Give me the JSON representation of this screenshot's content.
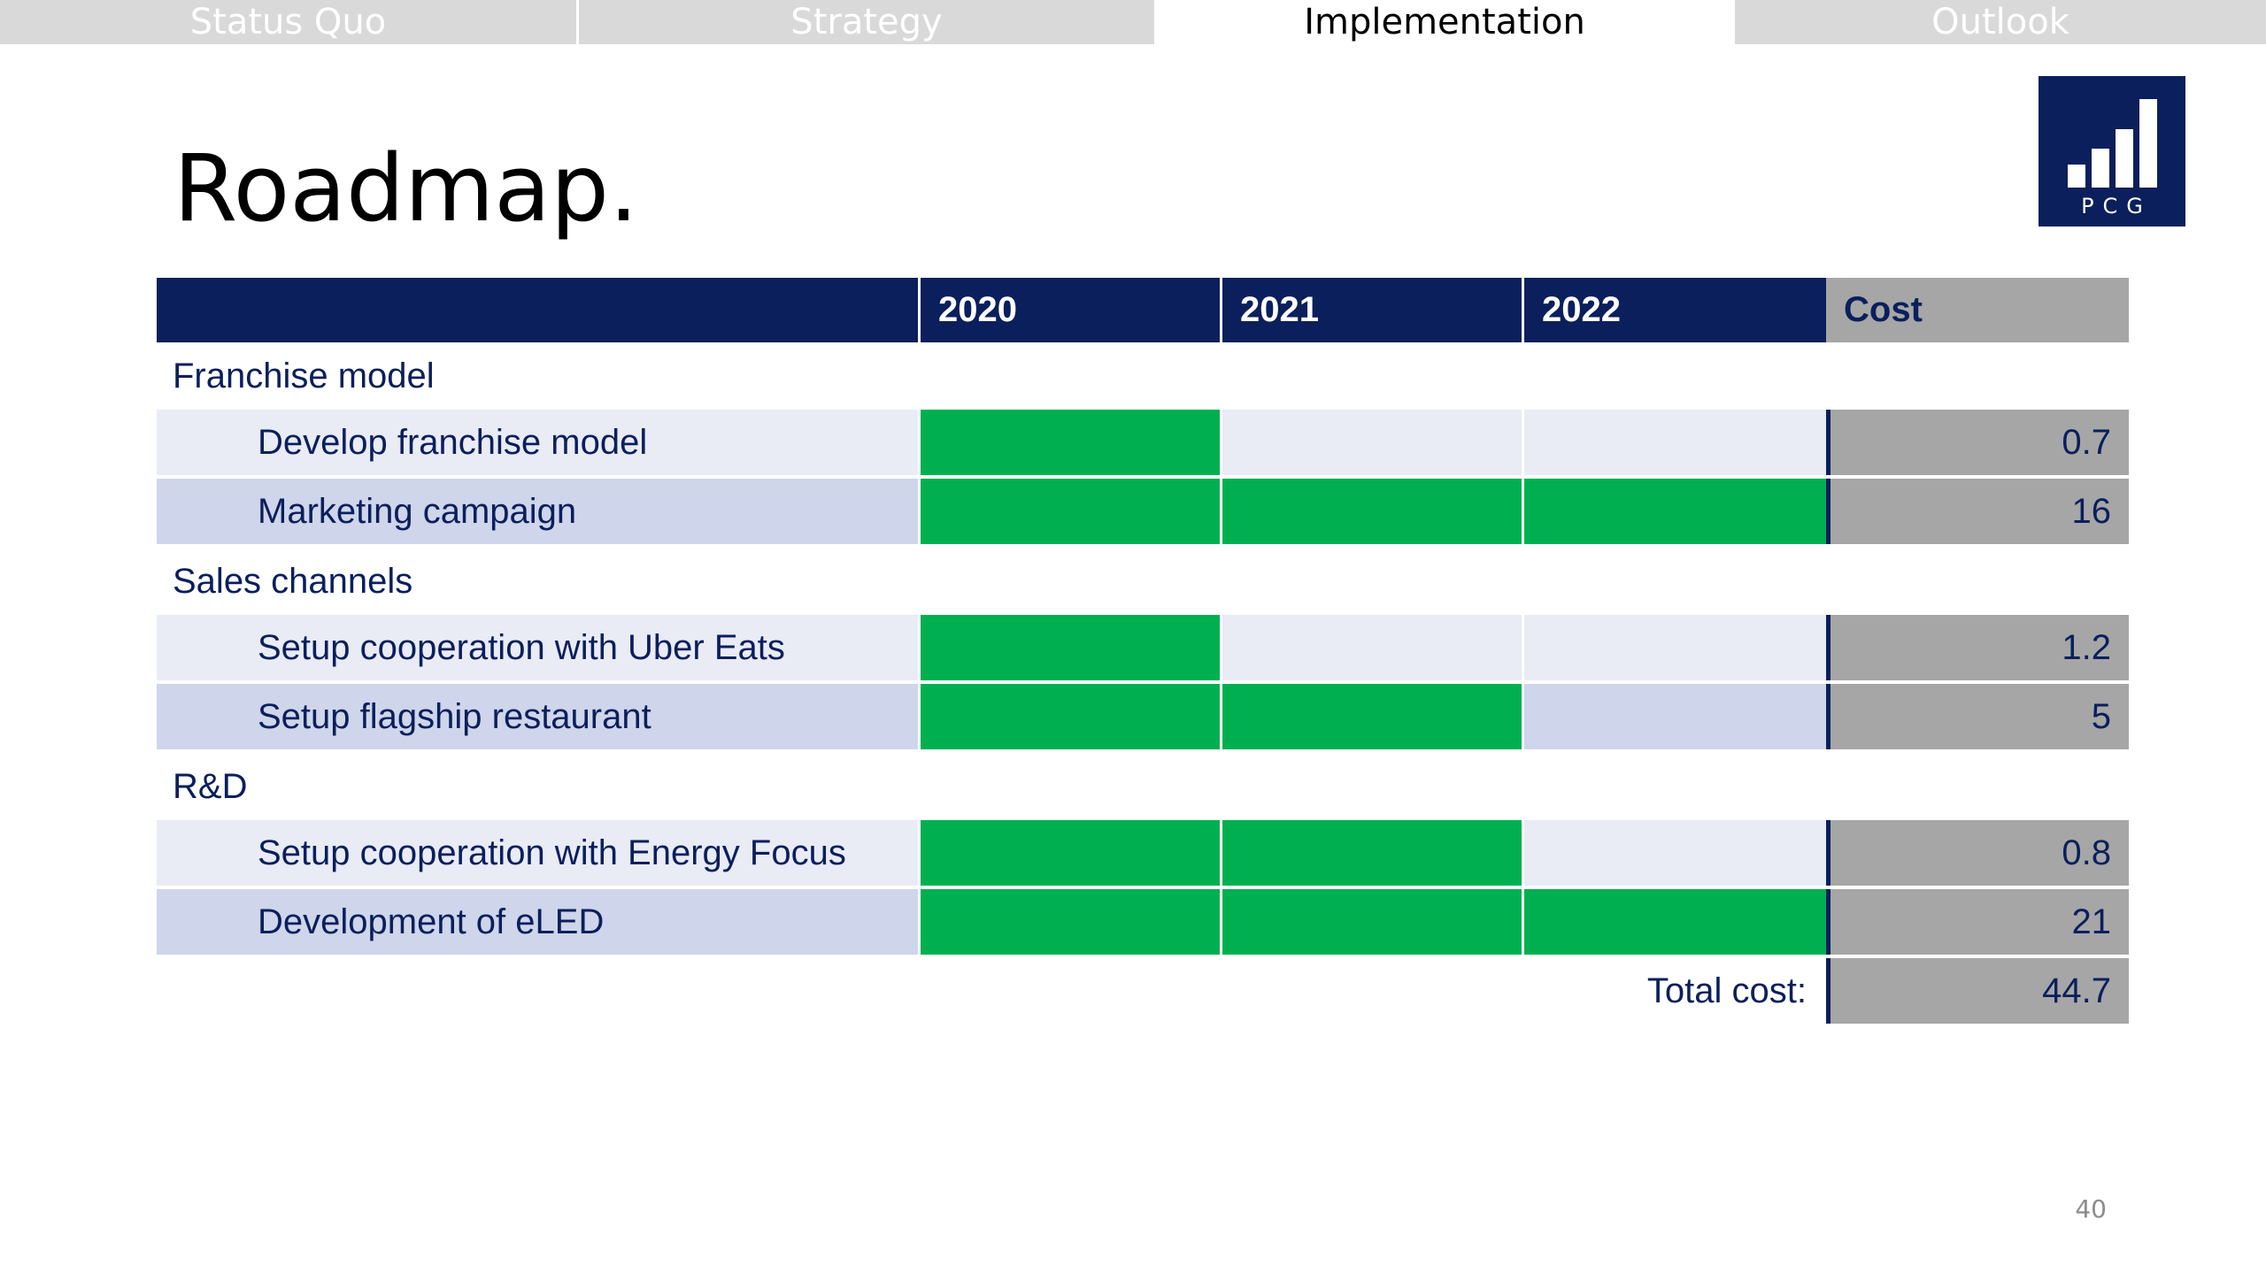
{
  "tabs": [
    {
      "label": "Status Quo",
      "active": false
    },
    {
      "label": "Strategy",
      "active": false
    },
    {
      "label": "Implementation",
      "active": true
    },
    {
      "label": "Outlook",
      "active": false
    }
  ],
  "title": "Roadmap.",
  "logo": {
    "text": "PCG",
    "icon": "bar-chart-logo-icon",
    "color": "#0a1f5c"
  },
  "table": {
    "columns": [
      "2020",
      "2021",
      "2022"
    ],
    "cost_header": "Cost",
    "colors": {
      "header": "#0a1f5c",
      "active": "#00b050",
      "row_light": "#e9ebf5",
      "row_dark": "#cfd5ea",
      "cost": "#a6a6a6",
      "text": "#0a1f5c"
    },
    "sections": [
      {
        "name": "Franchise model",
        "tasks": [
          {
            "name": "Develop franchise model",
            "active": [
              true,
              false,
              false
            ],
            "cost": "0.7"
          },
          {
            "name": "Marketing campaign",
            "active": [
              true,
              true,
              true
            ],
            "cost": "16"
          }
        ]
      },
      {
        "name": "Sales channels",
        "tasks": [
          {
            "name": "Setup cooperation with Uber Eats",
            "active": [
              true,
              false,
              false
            ],
            "cost": "1.2"
          },
          {
            "name": "Setup flagship restaurant",
            "active": [
              true,
              true,
              false
            ],
            "cost": "5"
          }
        ]
      },
      {
        "name": "R&D",
        "tasks": [
          {
            "name": "Setup cooperation with Energy Focus",
            "active": [
              true,
              true,
              false
            ],
            "cost": "0.8"
          },
          {
            "name": "Development of eLED",
            "active": [
              true,
              true,
              true
            ],
            "cost": "21"
          }
        ]
      }
    ],
    "total_label": "Total cost:",
    "total_value": "44.7"
  },
  "page_number": "40"
}
